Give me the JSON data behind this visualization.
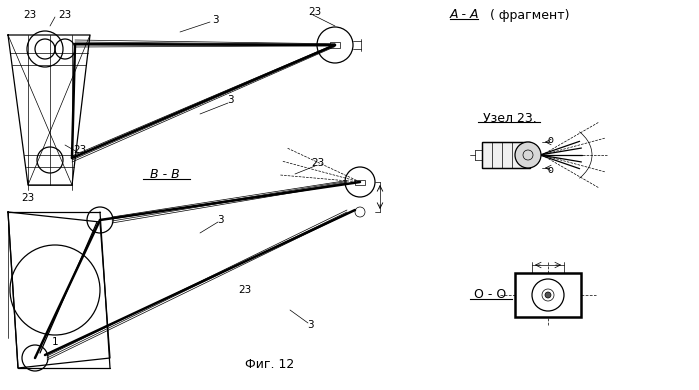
{
  "bg_color": "#ffffff",
  "line_color": "#000000",
  "title": "Фиг. 12",
  "section_aa": "А - А",
  "section_aa_sub": "( фрагмент)",
  "section_bb": "В - В",
  "uzел_label": "Узел 23.",
  "oo_label": "О - О",
  "figsize": [
    6.99,
    3.9
  ],
  "dpi": 100
}
